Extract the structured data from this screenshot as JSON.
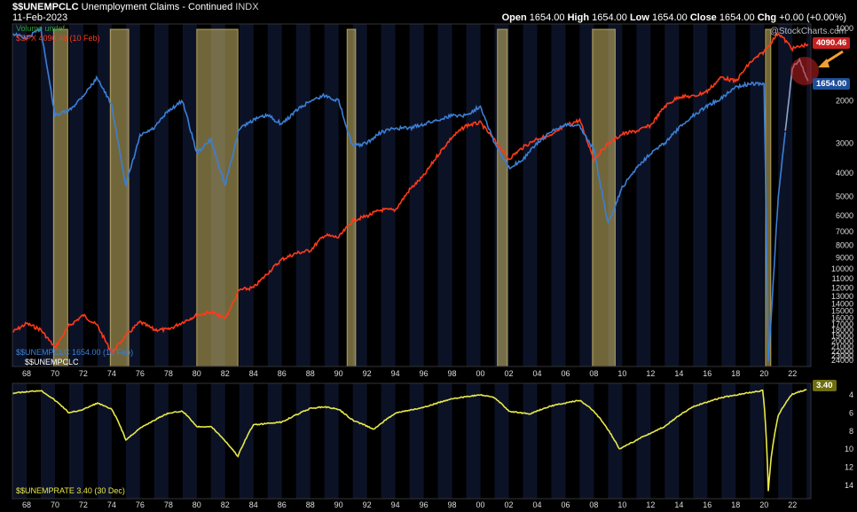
{
  "header": {
    "symbol": "$$UNEMPCLC",
    "name": "Unemployment Claims - Continued",
    "exchange": "INDX",
    "date": "11-Feb-2023",
    "ohlc": {
      "open_label": "Open",
      "open": "1654.00",
      "high_label": "High",
      "high": "1654.00",
      "low_label": "Low",
      "low": "1654.00",
      "close_label": "Close",
      "close": "1654.00",
      "chg_label": "Chg",
      "chg": "+0.00 (+0.00%)"
    },
    "logo": "@StockCharts.com"
  },
  "legend_top": {
    "volume": "Volume undef",
    "spx": "$SPX 4090.46 (10 Feb)"
  },
  "legend_bottom_main": {
    "unemp_clc": "$$UNEMPCLC 1654.00 (10 Feb)",
    "unemp_clc_2": "$$UNEMPCLC"
  },
  "legend_lower_panel": "$$UNEMPRATE 3.40 (30 Dec)",
  "tags": {
    "spx": "4090.46",
    "claims": "1654.00",
    "unemprate": "3.40"
  },
  "colors": {
    "claims": "#3b7fd6",
    "claims_recent": "#8aa8cc",
    "spx": "#ff3a1a",
    "unemprate": "#e8e84a",
    "recession": "#cdb96a",
    "axis_text": "#dddddd",
    "annotation_arrow": "#f0a030",
    "annotation_circle": "#c42020"
  },
  "chart_data": [
    {
      "type": "line",
      "title": "$$UNEMPCLC Unemployment Claims - Continued INDX",
      "y_axis": "right, inverted log",
      "y_ticks": [
        "1000",
        "2000",
        "3000",
        "4000",
        "5000",
        "6000",
        "7000",
        "8000",
        "9000",
        "10000",
        "11000",
        "12000",
        "13000",
        "14000",
        "15000",
        "16000",
        "17000",
        "18000",
        "19000",
        "20000",
        "21000",
        "22000",
        "23000",
        "24000"
      ],
      "x_ticks": [
        "68",
        "70",
        "72",
        "74",
        "76",
        "78",
        "80",
        "82",
        "84",
        "86",
        "88",
        "90",
        "92",
        "94",
        "96",
        "98",
        "00",
        "02",
        "04",
        "06",
        "08",
        "10",
        "12",
        "14",
        "16",
        "18",
        "20",
        "22"
      ],
      "recessions": [
        [
          1969.9,
          1970.9
        ],
        [
          1973.9,
          1975.2
        ],
        [
          1980.0,
          1982.9
        ],
        [
          1990.6,
          1991.2
        ],
        [
          2001.2,
          2001.9
        ],
        [
          2007.9,
          2009.5
        ],
        [
          2020.1,
          2020.4
        ]
      ],
      "series": [
        {
          "name": "$$UNEMPCLC",
          "x": [
            1967,
            1968,
            1969,
            1970,
            1971,
            1972,
            1973,
            1974,
            1975,
            1976,
            1977,
            1978,
            1979,
            1980,
            1981,
            1982,
            1983,
            1984,
            1985,
            1986,
            1987,
            1988,
            1989,
            1990,
            1991,
            1992,
            1993,
            1994,
            1995,
            1996,
            1997,
            1998,
            1999,
            2000,
            2001,
            2002,
            2003,
            2004,
            2005,
            2006,
            2007,
            2008,
            2009,
            2010,
            2011,
            2012,
            2013,
            2014,
            2015,
            2016,
            2017,
            2018,
            2019,
            2020.0,
            2020.3,
            2020.5,
            2021,
            2021.5,
            2022,
            2022.5,
            2023.1
          ],
          "y": [
            1050,
            1100,
            1000,
            2300,
            2200,
            1900,
            1600,
            2100,
            4500,
            2800,
            2600,
            2200,
            2000,
            3300,
            2900,
            4500,
            2600,
            2400,
            2300,
            2500,
            2200,
            2000,
            1900,
            2000,
            3100,
            3000,
            2700,
            2600,
            2600,
            2500,
            2400,
            2300,
            2300,
            2100,
            3000,
            3800,
            3500,
            3000,
            2700,
            2500,
            2550,
            3200,
            6500,
            4600,
            3800,
            3300,
            3000,
            2600,
            2300,
            2100,
            1950,
            1750,
            1700,
            1700,
            24000,
            16000,
            5000,
            2700,
            1450,
            1350,
            1654
          ]
        },
        {
          "name": "$SPX",
          "x": [
            1967,
            1968,
            1969,
            1970,
            1971,
            1972,
            1973,
            1974,
            1975,
            1976,
            1977,
            1978,
            1979,
            1980,
            1981,
            1982,
            1983,
            1984,
            1985,
            1986,
            1987,
            1988,
            1989,
            1990,
            1991,
            1992,
            1993,
            1994,
            1995,
            1996,
            1997,
            1998,
            1999,
            2000,
            2001,
            2002,
            2003,
            2004,
            2005,
            2006,
            2007,
            2008,
            2009,
            2010,
            2011,
            2012,
            2013,
            2014,
            2015,
            2016,
            2017,
            2018,
            2019,
            2020,
            2021,
            2022,
            2023.1
          ],
          "y": [
            92,
            103,
            95,
            75,
            100,
            115,
            100,
            70,
            88,
            105,
            95,
            95,
            105,
            115,
            120,
            110,
            160,
            165,
            200,
            240,
            260,
            270,
            330,
            320,
            400,
            425,
            460,
            460,
            600,
            720,
            950,
            1200,
            1400,
            1450,
            1150,
            900,
            1050,
            1180,
            1220,
            1400,
            1500,
            900,
            1100,
            1250,
            1300,
            1400,
            1800,
            2050,
            2050,
            2200,
            2650,
            2500,
            3200,
            3700,
            4750,
            3850,
            4090.46
          ]
        }
      ]
    },
    {
      "type": "line",
      "title": "$$UNEMPRATE",
      "y_axis": "right, inverted",
      "y_ticks": [
        "4",
        "6",
        "8",
        "10",
        "12",
        "14"
      ],
      "series": [
        {
          "name": "$$UNEMPRATE",
          "x": [
            1967,
            1969,
            1970,
            1971,
            1972,
            1973,
            1974,
            1975,
            1976,
            1978,
            1979,
            1980,
            1981,
            1982.9,
            1984,
            1986,
            1988,
            1989,
            1990,
            1991,
            1992.5,
            1994,
            1996,
            1998,
            2000,
            2001,
            2002,
            2003.5,
            2005,
            2007,
            2008,
            2009.8,
            2011,
            2013,
            2015,
            2017,
            2019.9,
            2020.3,
            2020.5,
            2021,
            2022,
            2023.0
          ],
          "y": [
            3.8,
            3.5,
            4.6,
            6.0,
            5.6,
            4.9,
            5.6,
            9.0,
            7.7,
            6.0,
            5.8,
            7.5,
            7.5,
            10.8,
            7.3,
            7.0,
            5.5,
            5.3,
            5.6,
            6.8,
            7.8,
            6.0,
            5.4,
            4.4,
            4.0,
            4.3,
            5.8,
            6.1,
            5.2,
            4.6,
            5.8,
            10.0,
            9.0,
            7.5,
            5.3,
            4.3,
            3.5,
            14.7,
            11.0,
            6.3,
            3.9,
            3.4
          ]
        }
      ]
    }
  ]
}
